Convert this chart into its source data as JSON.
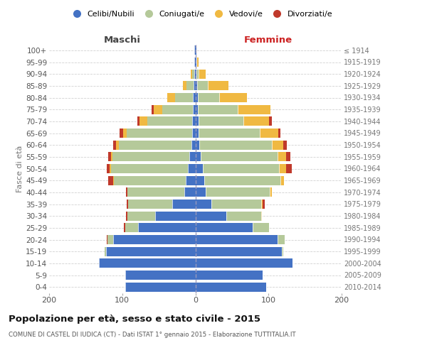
{
  "age_groups": [
    "0-4",
    "5-9",
    "10-14",
    "15-19",
    "20-24",
    "25-29",
    "30-34",
    "35-39",
    "40-44",
    "45-49",
    "50-54",
    "55-59",
    "60-64",
    "65-69",
    "70-74",
    "75-79",
    "80-84",
    "85-89",
    "90-94",
    "95-99",
    "100+"
  ],
  "birth_years": [
    "2010-2014",
    "2005-2009",
    "2000-2004",
    "1995-1999",
    "1990-1994",
    "1985-1989",
    "1980-1984",
    "1975-1979",
    "1970-1974",
    "1965-1969",
    "1960-1964",
    "1955-1959",
    "1950-1954",
    "1945-1949",
    "1940-1944",
    "1935-1939",
    "1930-1934",
    "1925-1929",
    "1920-1924",
    "1915-1919",
    "≤ 1914"
  ],
  "males": {
    "celibi": [
      96,
      96,
      132,
      122,
      112,
      78,
      55,
      32,
      15,
      13,
      10,
      8,
      5,
      4,
      4,
      3,
      3,
      2,
      1,
      1,
      1
    ],
    "coniugati": [
      0,
      0,
      0,
      2,
      8,
      18,
      38,
      60,
      78,
      98,
      105,
      105,
      100,
      90,
      62,
      42,
      25,
      10,
      3,
      0,
      0
    ],
    "vedovi": [
      0,
      0,
      0,
      0,
      0,
      0,
      0,
      0,
      0,
      1,
      2,
      2,
      4,
      5,
      10,
      12,
      10,
      5,
      2,
      0,
      0
    ],
    "divorziati": [
      0,
      0,
      0,
      0,
      1,
      2,
      2,
      2,
      2,
      7,
      4,
      4,
      3,
      5,
      3,
      3,
      0,
      0,
      0,
      0,
      0
    ]
  },
  "females": {
    "nubili": [
      97,
      92,
      133,
      118,
      112,
      78,
      42,
      22,
      14,
      12,
      10,
      7,
      5,
      4,
      4,
      3,
      3,
      2,
      1,
      1,
      1
    ],
    "coniugate": [
      0,
      0,
      0,
      2,
      10,
      23,
      48,
      68,
      88,
      104,
      104,
      105,
      100,
      84,
      62,
      55,
      30,
      15,
      3,
      0,
      0
    ],
    "vedove": [
      0,
      0,
      0,
      0,
      0,
      0,
      1,
      2,
      3,
      5,
      10,
      12,
      15,
      25,
      35,
      45,
      38,
      28,
      10,
      3,
      0
    ],
    "divorziate": [
      0,
      0,
      0,
      0,
      0,
      0,
      0,
      3,
      0,
      0,
      8,
      6,
      5,
      3,
      4,
      0,
      0,
      0,
      0,
      0,
      0
    ]
  },
  "colors": {
    "celibi": "#4472C4",
    "coniugati": "#b5c99a",
    "vedovi": "#f0b942",
    "divorziati": "#c0392b"
  },
  "title": "Popolazione per età, sesso e stato civile - 2015",
  "subtitle": "COMUNE DI CASTEL DI IUDICA (CT) - Dati ISTAT 1° gennaio 2015 - Elaborazione TUTTITALIA.IT",
  "ylabel_left": "Fasce di età",
  "xlabel_left": "Maschi",
  "xlabel_right": "Femmine",
  "xlim": 200,
  "bg_color": "#ffffff",
  "grid_color": "#cccccc",
  "legend_labels": [
    "Celibi/Nubili",
    "Coniugati/e",
    "Vedovi/e",
    "Divorziati/e"
  ]
}
